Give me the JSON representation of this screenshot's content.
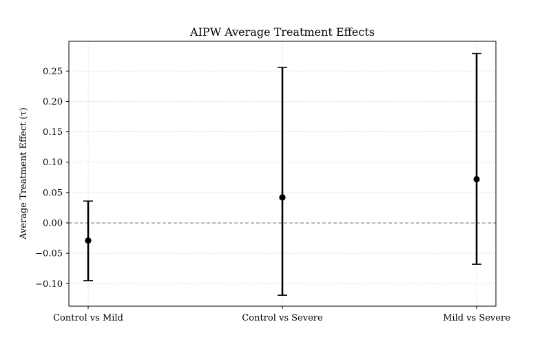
{
  "chart_data": {
    "type": "errorbar",
    "title": "AIPW Average Treatment Effects",
    "xlabel": "",
    "ylabel": "Average Treatment Effect (τ)",
    "categories": [
      "Control vs Mild",
      "Control vs Severe",
      "Mild vs Severe"
    ],
    "estimates": [
      -0.029,
      0.042,
      0.072
    ],
    "ci_lower": [
      -0.095,
      -0.119,
      -0.068
    ],
    "ci_upper": [
      0.036,
      0.256,
      0.279
    ],
    "ylim": [
      -0.137,
      0.299
    ],
    "yticks": [
      -0.1,
      -0.05,
      0.0,
      0.05,
      0.1,
      0.15,
      0.2,
      0.25
    ],
    "ytick_labels": [
      "−0.10",
      "−0.05",
      "0.00",
      "0.05",
      "0.10",
      "0.15",
      "0.20",
      "0.25"
    ],
    "reference_line": 0,
    "grid": true,
    "colors": {
      "markers": "#000000",
      "reference_line": "#808080",
      "grid": "#cccccc"
    }
  }
}
